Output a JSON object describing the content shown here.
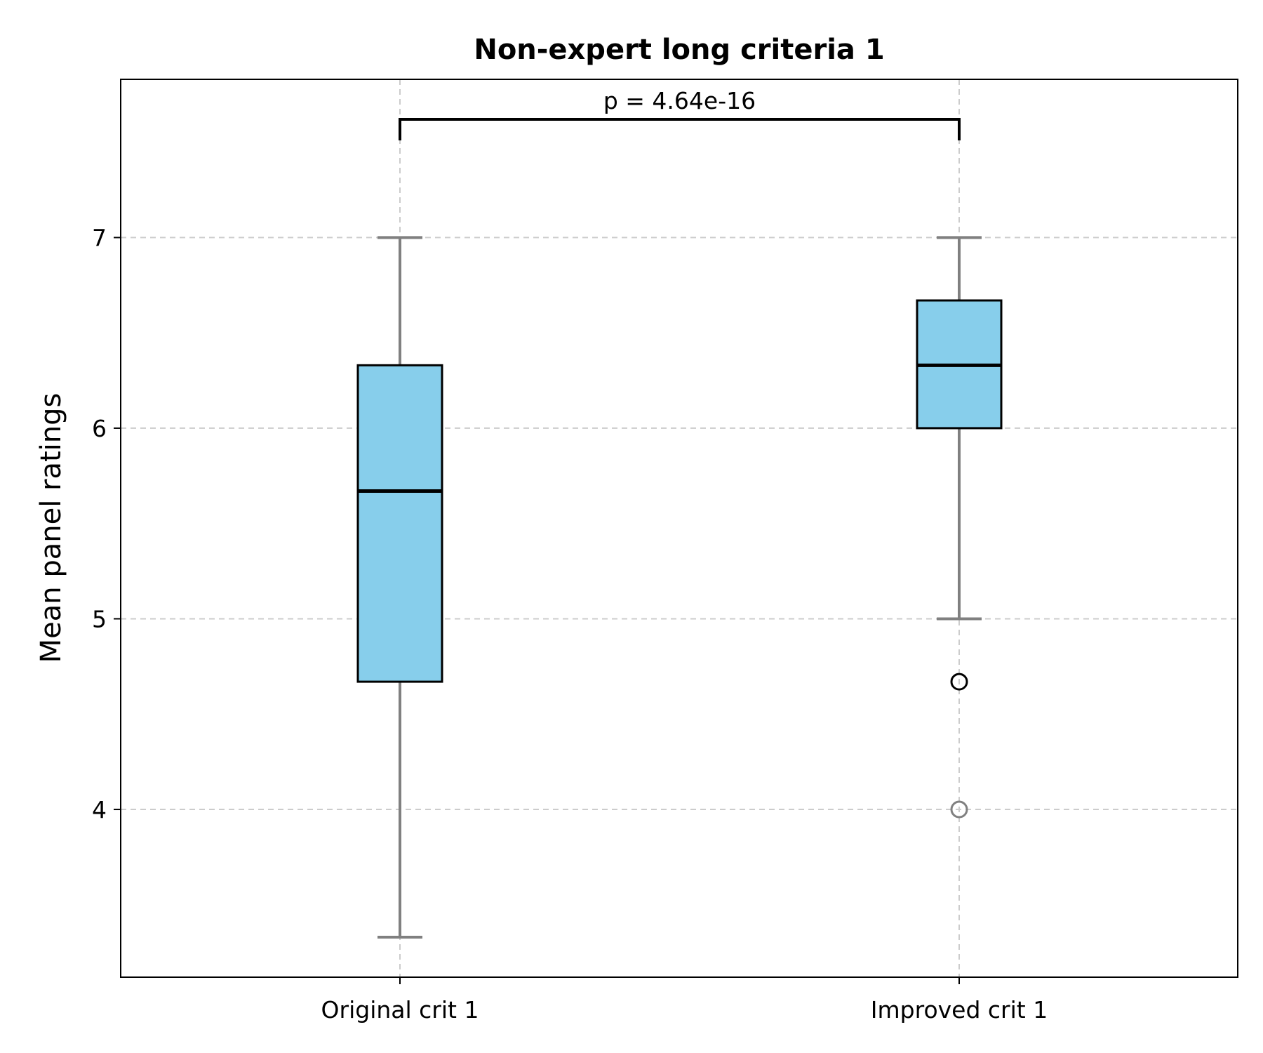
{
  "chart_data": {
    "type": "box",
    "title": "Non-expert long criteria 1",
    "xlabel": "",
    "ylabel": "Mean panel ratings",
    "categories": [
      "Original crit 1",
      "Improved crit 1"
    ],
    "ylim": [
      3.12,
      7.83
    ],
    "yticks": [
      4,
      5,
      6,
      7
    ],
    "grid": true,
    "box_color": "#87CEEB",
    "whisker_color": "#808080",
    "median_color": "#000000",
    "boxes": [
      {
        "label": "Original crit 1",
        "whisker_low": 3.33,
        "q1": 4.67,
        "median": 5.67,
        "q3": 6.33,
        "whisker_high": 7.0,
        "outliers": []
      },
      {
        "label": "Improved crit 1",
        "whisker_low": 5.0,
        "q1": 6.0,
        "median": 6.33,
        "q3": 6.67,
        "whisker_high": 7.0,
        "outliers": [
          {
            "value": 4.67,
            "color": "#000000"
          },
          {
            "value": 4.0,
            "color": "#808080"
          }
        ]
      }
    ],
    "annotation": {
      "text": "p = 4.64e-16",
      "between": [
        "Original crit 1",
        "Improved crit 1"
      ]
    }
  }
}
